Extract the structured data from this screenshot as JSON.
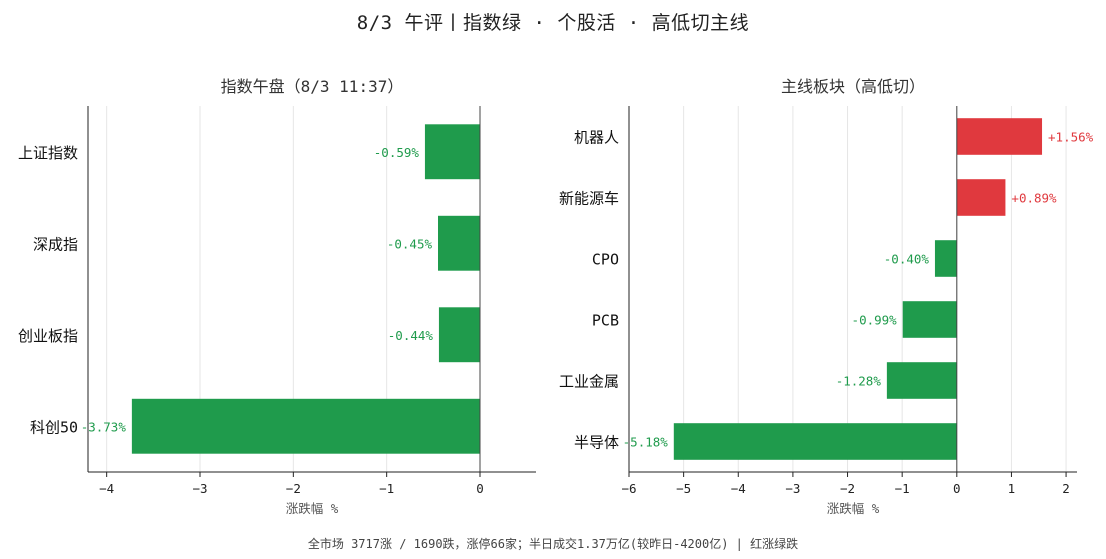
{
  "suptitle": "8/3 午评丨指数绿 · 个股活 · 高低切主线",
  "footer": "全市场 3717涨 / 1690跌，涨停66家；半日成交1.37万亿(较昨日-4200亿)  |  红涨绿跌",
  "colors": {
    "up": "#e0393e",
    "down": "#1f9b4c",
    "axis": "#222222",
    "grid": "#e6e6e6"
  },
  "chart_data": [
    {
      "type": "bar",
      "orientation": "horizontal",
      "title": "指数午盘（8/3 11:37）",
      "xlabel": "涨跌幅 %",
      "categories": [
        "上证指数",
        "深成指",
        "创业板指",
        "科创50"
      ],
      "values": [
        -0.59,
        -0.45,
        -0.44,
        -3.73
      ],
      "value_labels": [
        "-0.59%",
        "-0.45%",
        "-0.44%",
        "-3.73%"
      ],
      "xlim": [
        -4.2,
        0.6
      ],
      "xticks": [
        -4,
        -3,
        -2,
        -1,
        0
      ],
      "xtick_labels": [
        "−4",
        "−3",
        "−2",
        "−1",
        "0"
      ],
      "grid": "vertical"
    },
    {
      "type": "bar",
      "orientation": "horizontal",
      "title": "主线板块（高低切）",
      "xlabel": "涨跌幅 %",
      "categories": [
        "机器人",
        "新能源车",
        "CPO",
        "PCB",
        "工业金属",
        "半导体"
      ],
      "values": [
        1.56,
        0.89,
        -0.4,
        -0.99,
        -1.28,
        -5.18
      ],
      "value_labels": [
        "+1.56%",
        "+0.89%",
        "-0.40%",
        "-0.99%",
        "-1.28%",
        "-5.18%"
      ],
      "xlim": [
        -6,
        2.2
      ],
      "xticks": [
        -6,
        -5,
        -4,
        -3,
        -2,
        -1,
        0,
        1,
        2
      ],
      "xtick_labels": [
        "−6",
        "−5",
        "−4",
        "−3",
        "−2",
        "−1",
        "0",
        "1",
        "2"
      ],
      "grid": "vertical"
    }
  ]
}
